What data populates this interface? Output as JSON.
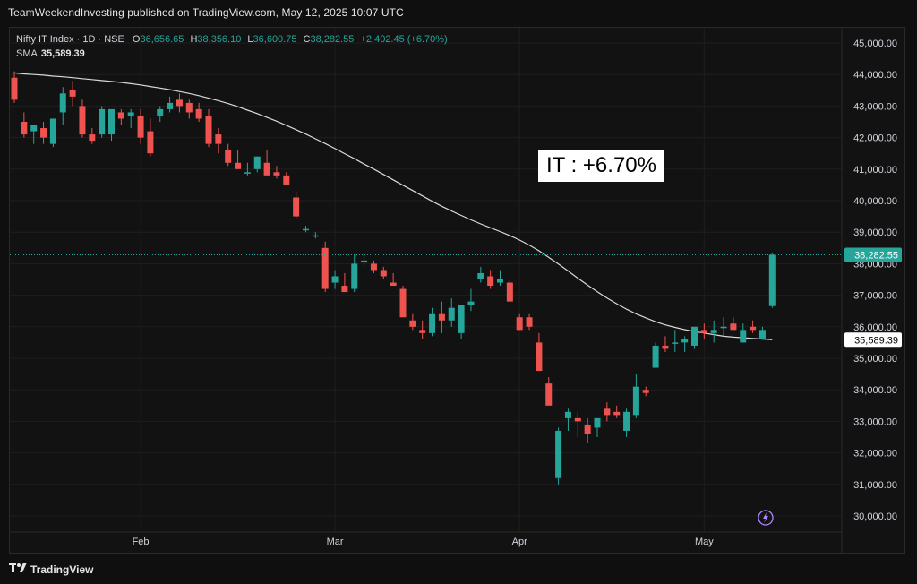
{
  "publish_line": "TeamWeekendInvesting published on TradingView.com, May 12, 2025 10:07 UTC",
  "legend": {
    "symbol": "Nifty IT Index · 1D · NSE",
    "open_label": "O",
    "open": "36,656.65",
    "high_label": "H",
    "high": "38,356.10",
    "low_label": "L",
    "low": "36,600.75",
    "close_label": "C",
    "close": "38,282.55",
    "change": "+2,402.45 (+6.70%)",
    "sma_label": "SMA",
    "sma_value": "35,589.39"
  },
  "annotation": "IT : +6.70%",
  "footer": {
    "brand": "TradingView",
    "icon": "tradingview-logo-icon"
  },
  "flash_icon": "lightning-icon",
  "colors": {
    "up": "#26a69a",
    "down": "#ef5350",
    "sma": "#d9d9d9",
    "background": "#121212",
    "grid": "#1e1e1e"
  },
  "chart_data": {
    "type": "candlestick",
    "ylim": [
      29600,
      45300
    ],
    "y_ticks": [
      30000,
      31000,
      32000,
      33000,
      34000,
      35000,
      36000,
      37000,
      38000,
      39000,
      40000,
      41000,
      42000,
      43000,
      44000,
      45000
    ],
    "y_tick_labels": [
      "30,000.00",
      "31,000.00",
      "32,000.00",
      "33,000.00",
      "34,000.00",
      "35,000.00",
      "36,000.00",
      "37,000.00",
      "38,000.00",
      "39,000.00",
      "40,000.00",
      "41,000.00",
      "42,000.00",
      "43,000.00",
      "44,000.00",
      "45,000.00"
    ],
    "x_labels": [
      {
        "label": "Feb",
        "index": 13
      },
      {
        "label": "Mar",
        "index": 33
      },
      {
        "label": "Apr",
        "index": 52
      },
      {
        "label": "May",
        "index": 71
      }
    ],
    "last_price": {
      "value": 38282.55,
      "label": "38,282.55"
    },
    "sma_price": {
      "value": 35589.39,
      "label": "35,589.39"
    },
    "candles": [
      [
        43900,
        44100,
        43100,
        43200
      ],
      [
        42500,
        42800,
        42000,
        42100
      ],
      [
        42200,
        42400,
        41800,
        42400
      ],
      [
        42300,
        42500,
        41800,
        42000
      ],
      [
        41800,
        42600,
        41700,
        42600
      ],
      [
        42800,
        43600,
        42400,
        43400
      ],
      [
        43500,
        43800,
        43000,
        43300
      ],
      [
        43000,
        43200,
        42000,
        42100
      ],
      [
        42100,
        42300,
        41800,
        41900
      ],
      [
        42100,
        43000,
        42000,
        42900
      ],
      [
        42100,
        42800,
        41900,
        42900
      ],
      [
        42800,
        42900,
        42400,
        42600
      ],
      [
        42700,
        42900,
        42300,
        42800
      ],
      [
        42700,
        42900,
        41800,
        42000
      ],
      [
        42200,
        42600,
        41400,
        41500
      ],
      [
        42700,
        43000,
        42500,
        42900
      ],
      [
        42900,
        43300,
        42800,
        43100
      ],
      [
        43200,
        43400,
        42800,
        43000
      ],
      [
        43100,
        43200,
        42600,
        42800
      ],
      [
        42900,
        43100,
        42500,
        42600
      ],
      [
        42700,
        42900,
        41700,
        41800
      ],
      [
        42100,
        42300,
        41500,
        41800
      ],
      [
        41600,
        41800,
        41100,
        41200
      ],
      [
        41200,
        41600,
        41000,
        41000
      ],
      [
        40900,
        41200,
        40800,
        40900
      ],
      [
        41000,
        41400,
        40900,
        41400
      ],
      [
        41200,
        41600,
        40900,
        40800
      ],
      [
        40900,
        41100,
        40700,
        40800
      ],
      [
        40800,
        40900,
        40500,
        40500
      ],
      [
        40100,
        40300,
        39400,
        39500
      ],
      [
        39100,
        39200,
        39000,
        39100
      ],
      [
        38900,
        39000,
        38800,
        38900
      ],
      [
        38500,
        38700,
        37100,
        37200
      ],
      [
        37400,
        37800,
        37200,
        37600
      ],
      [
        37300,
        37700,
        37200,
        37100
      ],
      [
        37200,
        38300,
        37100,
        38000
      ],
      [
        38100,
        38200,
        37900,
        38100
      ],
      [
        38000,
        38100,
        37700,
        37800
      ],
      [
        37800,
        37900,
        37500,
        37600
      ],
      [
        37400,
        37700,
        37400,
        37300
      ],
      [
        37200,
        37300,
        36300,
        36300
      ],
      [
        36200,
        36400,
        35900,
        36000
      ],
      [
        35900,
        36200,
        35600,
        35800
      ],
      [
        35800,
        36600,
        35700,
        36400
      ],
      [
        36400,
        36800,
        35800,
        36200
      ],
      [
        36200,
        36900,
        36000,
        36600
      ],
      [
        35800,
        36700,
        35600,
        36700
      ],
      [
        36700,
        37200,
        36500,
        36800
      ],
      [
        37500,
        37900,
        37400,
        37700
      ],
      [
        37600,
        37800,
        37200,
        37300
      ],
      [
        37400,
        37800,
        37300,
        37500
      ],
      [
        37400,
        37500,
        36800,
        36800
      ],
      [
        36300,
        36400,
        35900,
        35900
      ],
      [
        36300,
        36400,
        35900,
        36000
      ],
      [
        35500,
        35800,
        34600,
        34600
      ],
      [
        34200,
        34400,
        33500,
        33500
      ],
      [
        31200,
        32800,
        31000,
        32700
      ],
      [
        33100,
        33400,
        32700,
        33300
      ],
      [
        33100,
        33300,
        32500,
        33000
      ],
      [
        32900,
        33100,
        32300,
        32600
      ],
      [
        32800,
        33100,
        32500,
        33100
      ],
      [
        33400,
        33600,
        33000,
        33200
      ],
      [
        33300,
        33500,
        33100,
        33200
      ],
      [
        32700,
        33400,
        32500,
        33300
      ],
      [
        33200,
        34500,
        33100,
        34100
      ],
      [
        34000,
        34100,
        33800,
        33900
      ],
      [
        34700,
        35500,
        34700,
        35400
      ],
      [
        35400,
        35700,
        35200,
        35300
      ],
      [
        35500,
        35900,
        35200,
        35500
      ],
      [
        35500,
        35700,
        35200,
        35600
      ],
      [
        35400,
        36000,
        35300,
        36000
      ],
      [
        35900,
        36100,
        35600,
        35800
      ],
      [
        35800,
        36200,
        35500,
        35900
      ],
      [
        36000,
        36300,
        35700,
        36000
      ],
      [
        36100,
        36300,
        35900,
        35900
      ],
      [
        35500,
        36100,
        35500,
        35900
      ],
      [
        36000,
        36200,
        35800,
        35900
      ],
      [
        35600,
        36000,
        35600,
        35900
      ],
      [
        36656.65,
        38356.1,
        36600.75,
        38282.55
      ]
    ],
    "sma": [
      44050,
      44020,
      44000,
      43980,
      43950,
      43930,
      43900,
      43870,
      43840,
      43810,
      43780,
      43750,
      43710,
      43670,
      43620,
      43570,
      43520,
      43460,
      43400,
      43330,
      43250,
      43170,
      43080,
      42980,
      42870,
      42760,
      42640,
      42520,
      42390,
      42250,
      42110,
      41960,
      41810,
      41650,
      41490,
      41330,
      41160,
      41000,
      40830,
      40660,
      40490,
      40320,
      40150,
      39980,
      39820,
      39670,
      39530,
      39390,
      39260,
      39140,
      39020,
      38890,
      38750,
      38590,
      38410,
      38200,
      37990,
      37770,
      37540,
      37320,
      37110,
      36910,
      36730,
      36560,
      36410,
      36280,
      36160,
      36060,
      35980,
      35910,
      35850,
      35800,
      35750,
      35700,
      35670,
      35650,
      35630,
      35610,
      35589.39
    ]
  }
}
